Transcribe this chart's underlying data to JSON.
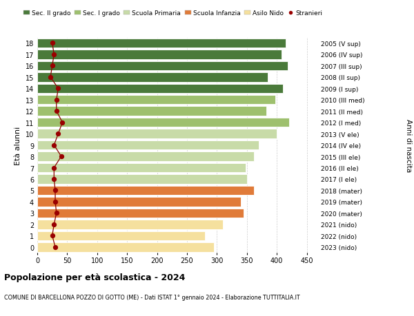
{
  "ages": [
    0,
    1,
    2,
    3,
    4,
    5,
    6,
    7,
    8,
    9,
    10,
    11,
    12,
    13,
    14,
    15,
    16,
    17,
    18
  ],
  "bar_values": [
    295,
    280,
    310,
    345,
    340,
    362,
    350,
    348,
    362,
    370,
    400,
    420,
    382,
    398,
    410,
    385,
    418,
    408,
    415
  ],
  "right_labels": [
    "2023 (nido)",
    "2022 (nido)",
    "2021 (nido)",
    "2020 (mater)",
    "2019 (mater)",
    "2018 (mater)",
    "2017 (I ele)",
    "2016 (II ele)",
    "2015 (III ele)",
    "2014 (IV ele)",
    "2013 (V ele)",
    "2012 (I med)",
    "2011 (II med)",
    "2010 (III med)",
    "2009 (I sup)",
    "2008 (II sup)",
    "2007 (III sup)",
    "2006 (IV sup)",
    "2005 (V sup)"
  ],
  "bar_colors": [
    "#f5e09e",
    "#f5e09e",
    "#f5e09e",
    "#e07b39",
    "#e07b39",
    "#e07b39",
    "#c8dba8",
    "#c8dba8",
    "#c8dba8",
    "#c8dba8",
    "#c8dba8",
    "#9ec06e",
    "#9ec06e",
    "#9ec06e",
    "#4a7a3a",
    "#4a7a3a",
    "#4a7a3a",
    "#4a7a3a",
    "#4a7a3a"
  ],
  "stranieri_values": [
    30,
    25,
    28,
    32,
    30,
    30,
    28,
    28,
    40,
    28,
    35,
    42,
    32,
    32,
    35,
    22,
    25,
    28,
    25
  ],
  "legend_labels": [
    "Sec. II grado",
    "Sec. I grado",
    "Scuola Primaria",
    "Scuola Infanzia",
    "Asilo Nido",
    "Stranieri"
  ],
  "legend_colors": [
    "#4a7a3a",
    "#9ec06e",
    "#c8dba8",
    "#e07b39",
    "#f5e09e",
    "#990000"
  ],
  "title": "Popolazione per età scolastica - 2024",
  "subtitle": "COMUNE DI BARCELLONA POZZO DI GOTTO (ME) - Dati ISTAT 1° gennaio 2024 - Elaborazione TUTTITALIA.IT",
  "ylabel_left": "Età alunni",
  "ylabel_right": "Anni di nascita",
  "xlim": [
    0,
    470
  ],
  "xticks": [
    0,
    50,
    100,
    150,
    200,
    250,
    300,
    350,
    400,
    450
  ],
  "background_color": "#ffffff",
  "grid_color": "#cccccc"
}
